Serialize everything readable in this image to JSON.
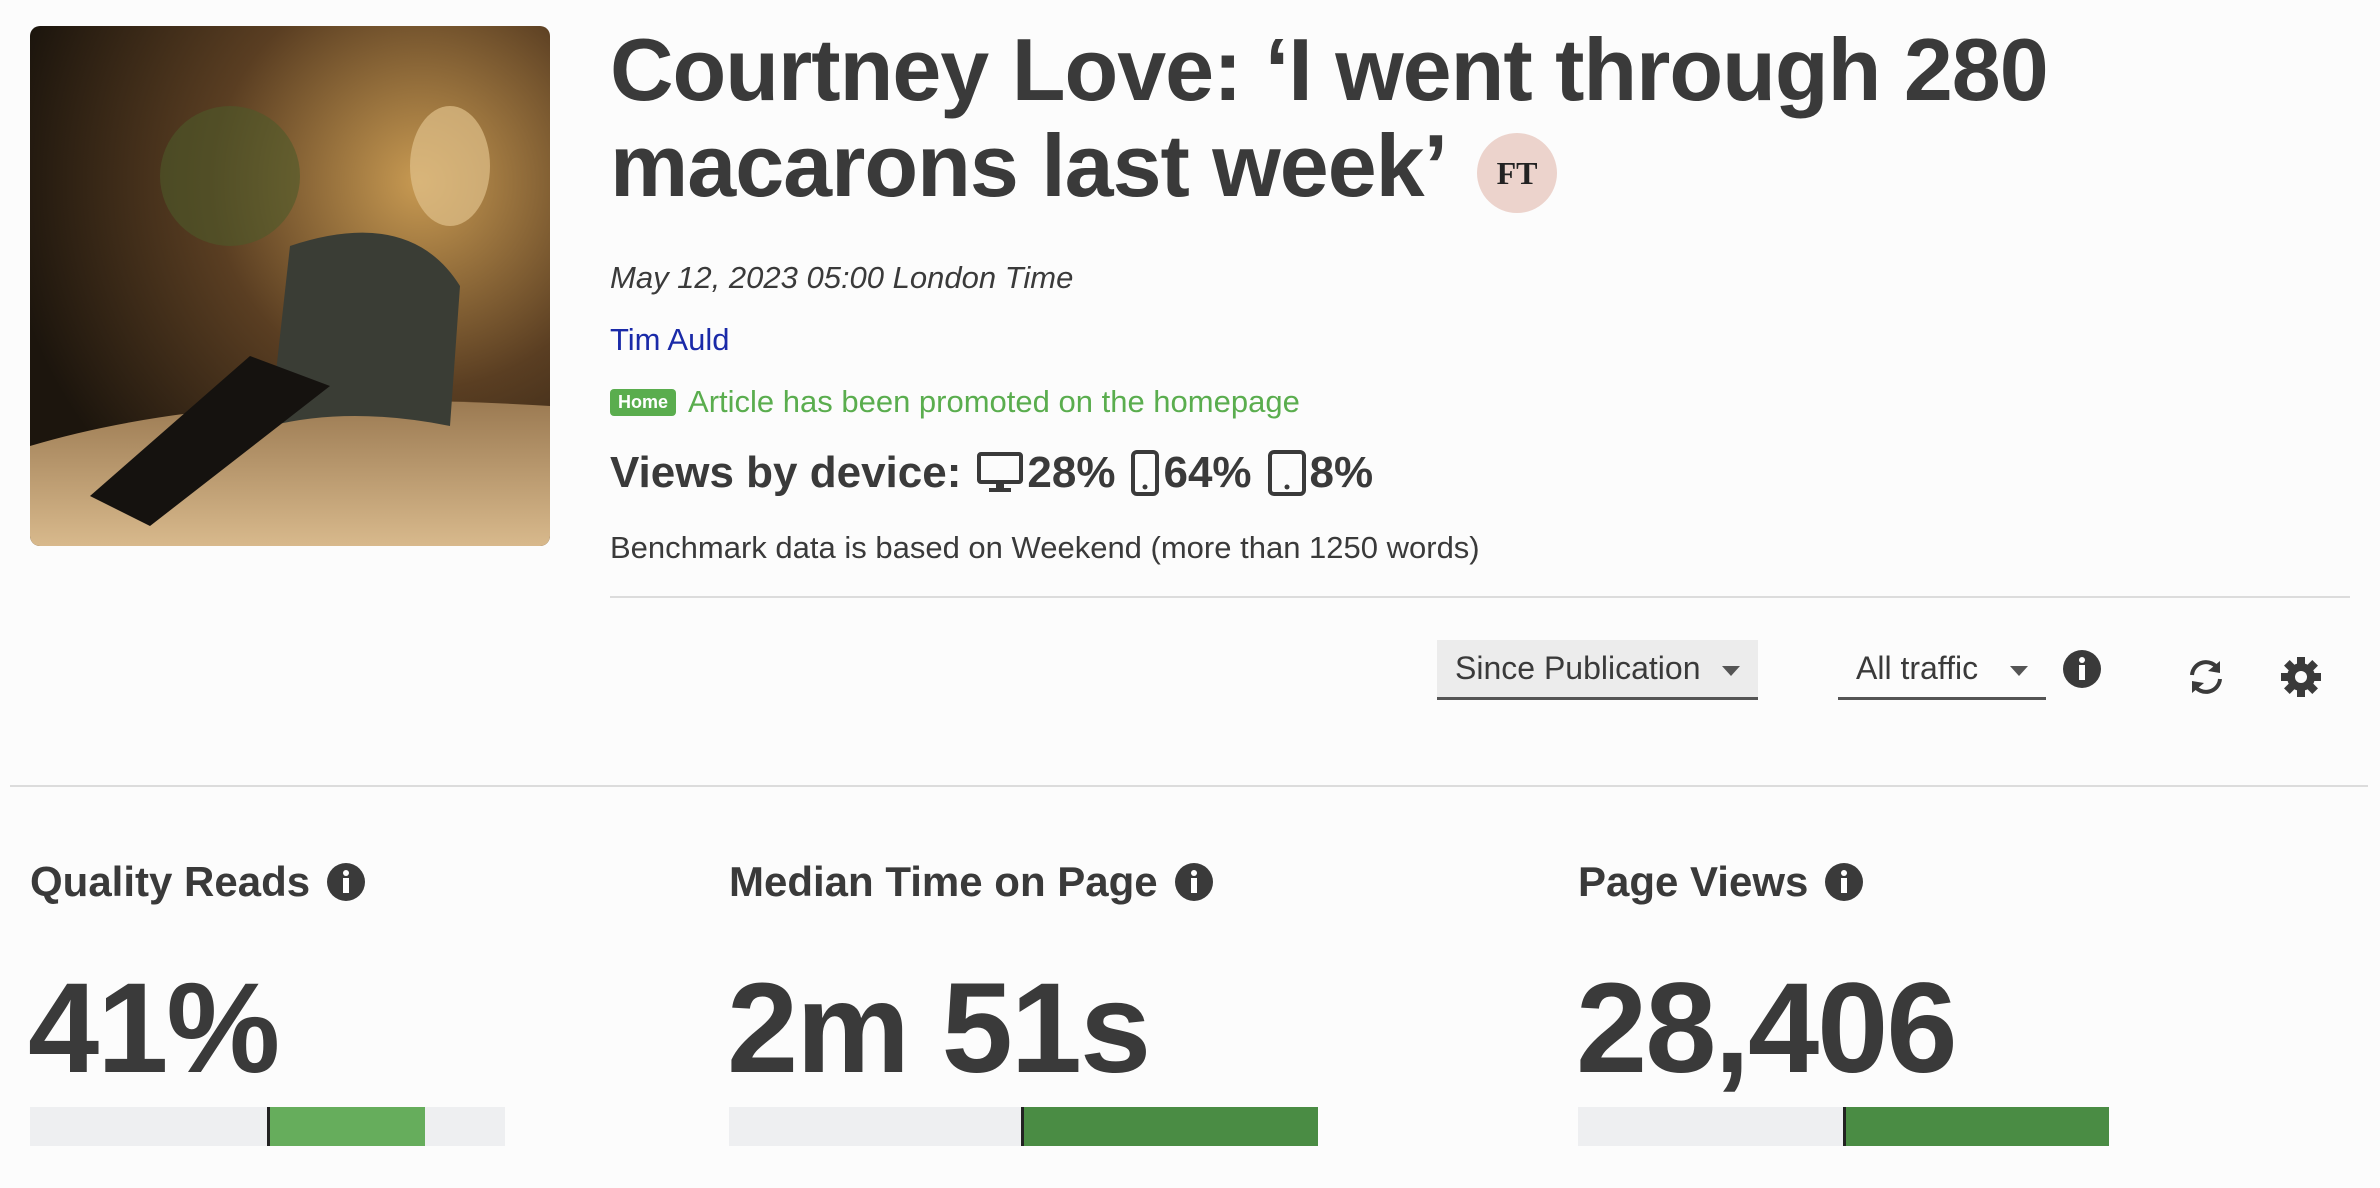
{
  "article": {
    "title": "Courtney Love: ‘I went through 280 macarons last week’",
    "publisher_badge": "FT",
    "date": "May 12, 2023 05:00 London Time",
    "author": "Tim Auld",
    "promotion_badge": "Home",
    "promotion_text": "Article has been promoted on the homepage",
    "device_label": "Views by device:",
    "device_shares": [
      "28%",
      "64%",
      "8%"
    ],
    "benchmark_note": "Benchmark data is based on Weekend (more than 1250 words)"
  },
  "controls": {
    "period": "Since Publication",
    "traffic": "All traffic"
  },
  "metrics": [
    {
      "title": "Quality Reads",
      "value": "41%"
    },
    {
      "title": "Median Time on Page",
      "value": "2m 51s"
    },
    {
      "title": "Page Views",
      "value": "28,406"
    }
  ]
}
